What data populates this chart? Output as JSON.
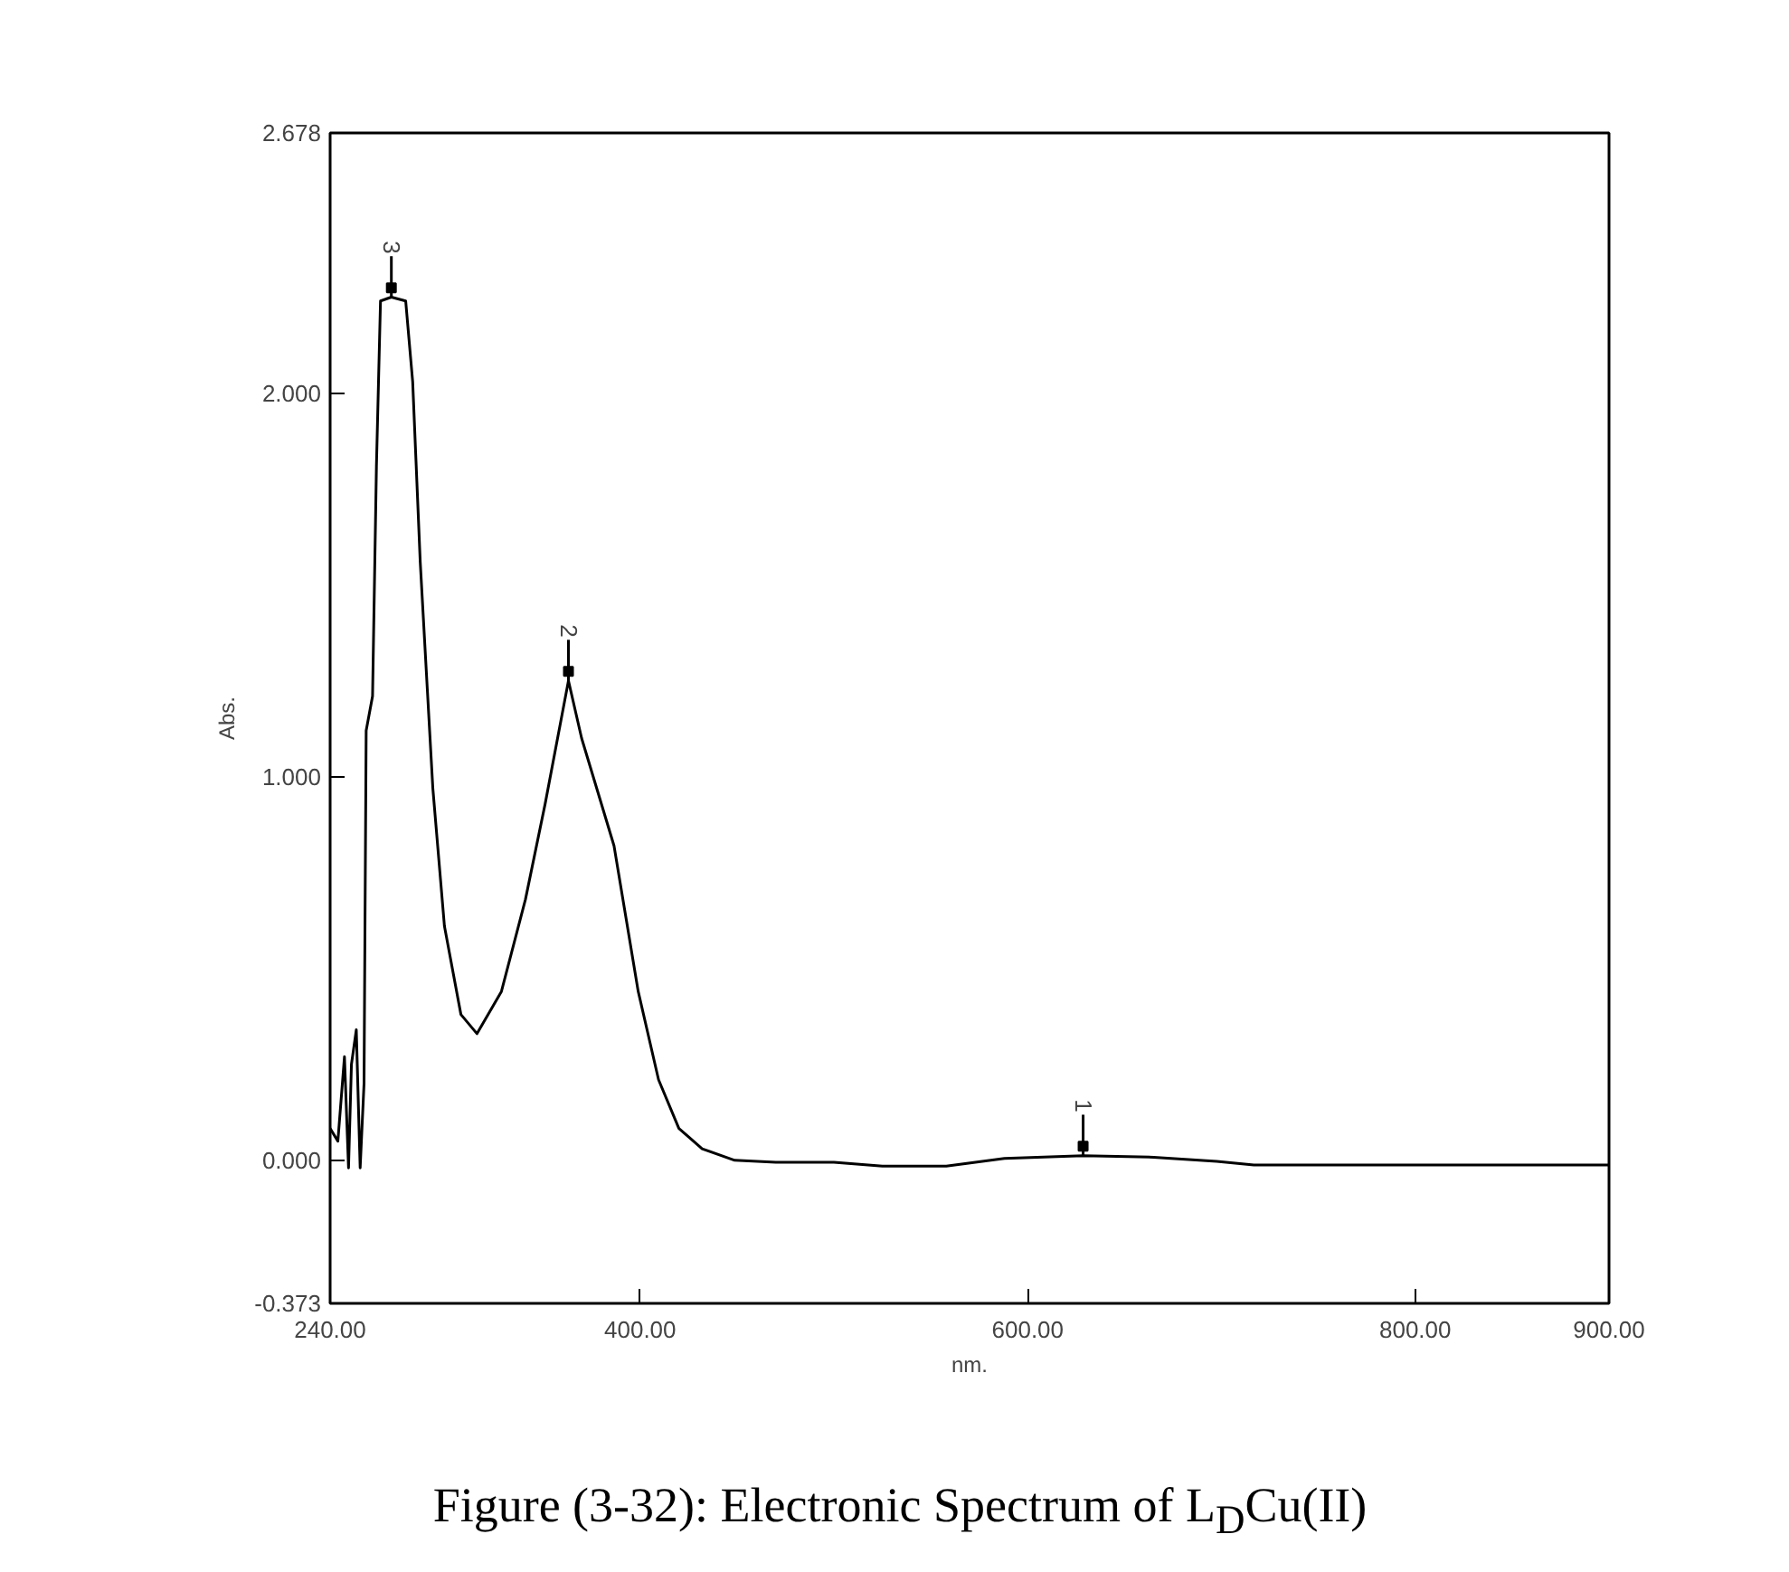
{
  "chart_data": {
    "type": "line",
    "title": "Figure (3-32): Electronic Spectrum of L$_{D}$Cu(II)",
    "xlabel": "nm.",
    "ylabel": "Abs.",
    "x": [
      240,
      244,
      247.4,
      249.5,
      251,
      253.5,
      255.5,
      257.5,
      258.6,
      261.9,
      263.9,
      266,
      271.6,
      279,
      282.6,
      286.5,
      293,
      299,
      307.5,
      315.8,
      328.4,
      340.8,
      351,
      363,
      369.8,
      386.5,
      399,
      409.5,
      420,
      432,
      448.8,
      470,
      500,
      525,
      558,
      588,
      628.6,
      665,
      697.6,
      716.7,
      800,
      900
    ],
    "series": [
      {
        "color": "#000000",
        "values": [
          0.083,
          0.05,
          0.27,
          -0.02,
          0.25,
          0.34,
          -0.02,
          0.2,
          1.12,
          1.21,
          1.81,
          2.24,
          2.25,
          2.24,
          2.03,
          1.56,
          0.97,
          0.61,
          0.38,
          0.33,
          0.44,
          0.68,
          0.93,
          1.25,
          1.1,
          0.82,
          0.44,
          0.21,
          0.083,
          0.03,
          0.0,
          -0.005,
          -0.005,
          -0.015,
          -0.015,
          0.005,
          0.012,
          0.008,
          -0.003,
          -0.012,
          -0.012,
          -0.012
        ]
      }
    ],
    "xlim": [
      240,
      900
    ],
    "ylim": [
      -0.373,
      2.678
    ],
    "xticks": [
      {
        "value": 240,
        "label": "240.00"
      },
      {
        "value": 400,
        "label": "400.00"
      },
      {
        "value": 600,
        "label": "600.00"
      },
      {
        "value": 800,
        "label": "800.00"
      },
      {
        "value": 900,
        "label": "900.00"
      }
    ],
    "yticks": [
      {
        "value": -0.373,
        "label": "-0.373"
      },
      {
        "value": 0,
        "label": "0.000"
      },
      {
        "value": 1,
        "label": "1.000"
      },
      {
        "value": 2,
        "label": "2.000"
      },
      {
        "value": 2.678,
        "label": "2.678"
      }
    ],
    "annotations": [
      {
        "text": "1",
        "x": 628.6,
        "y": 0.012
      },
      {
        "text": "2",
        "x": 363,
        "y": 1.25
      },
      {
        "text": "3",
        "x": 271.6,
        "y": 2.25
      }
    ],
    "grid": false,
    "marker": "none",
    "line_style": "solid"
  }
}
